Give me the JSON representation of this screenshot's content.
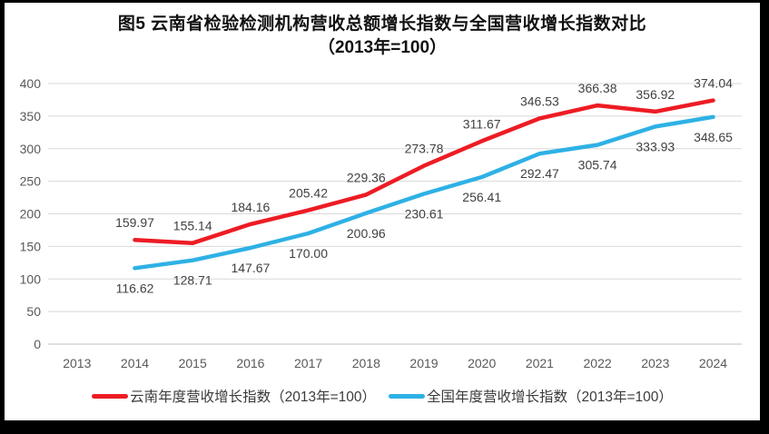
{
  "title": {
    "line1": "图5  云南省检验检测机构营收总额增长指数与全国营收增长指数对比",
    "line2": "（2013年=100）"
  },
  "chart_data": {
    "type": "line",
    "title": "图5 云南省检验检测机构营收总额增长指数与全国营收增长指数对比（2013年=100）",
    "categories": [
      "2013",
      "2014",
      "2015",
      "2016",
      "2017",
      "2018",
      "2019",
      "2020",
      "2021",
      "2022",
      "2023",
      "2024"
    ],
    "series": [
      {
        "name": "云南年度营收增长指数（2013年=100）",
        "color": "#ED1C24",
        "label_position": "above",
        "values": [
          null,
          159.97,
          155.14,
          184.16,
          205.42,
          229.36,
          273.78,
          311.67,
          346.53,
          366.38,
          356.92,
          374.04
        ]
      },
      {
        "name": "全国年度营收增长指数（2013年=100）",
        "color": "#2EB1E5",
        "label_position": "below",
        "values": [
          null,
          116.62,
          128.71,
          147.67,
          170.0,
          200.96,
          230.61,
          256.41,
          292.47,
          305.74,
          333.93,
          348.65
        ]
      }
    ],
    "ylim": [
      0,
      400
    ],
    "yticks": [
      0,
      50,
      100,
      150,
      200,
      250,
      300,
      350,
      400
    ],
    "grid": true,
    "legend_position": "bottom",
    "data_labels": true
  },
  "styles": {
    "axis_label_color": "#595959",
    "data_label_color": "#404040",
    "gridline_color": "#D9D9D9",
    "axis_line_color": "#C0C0C0",
    "frame_color": "#000000",
    "background": "#FFFFFF"
  }
}
